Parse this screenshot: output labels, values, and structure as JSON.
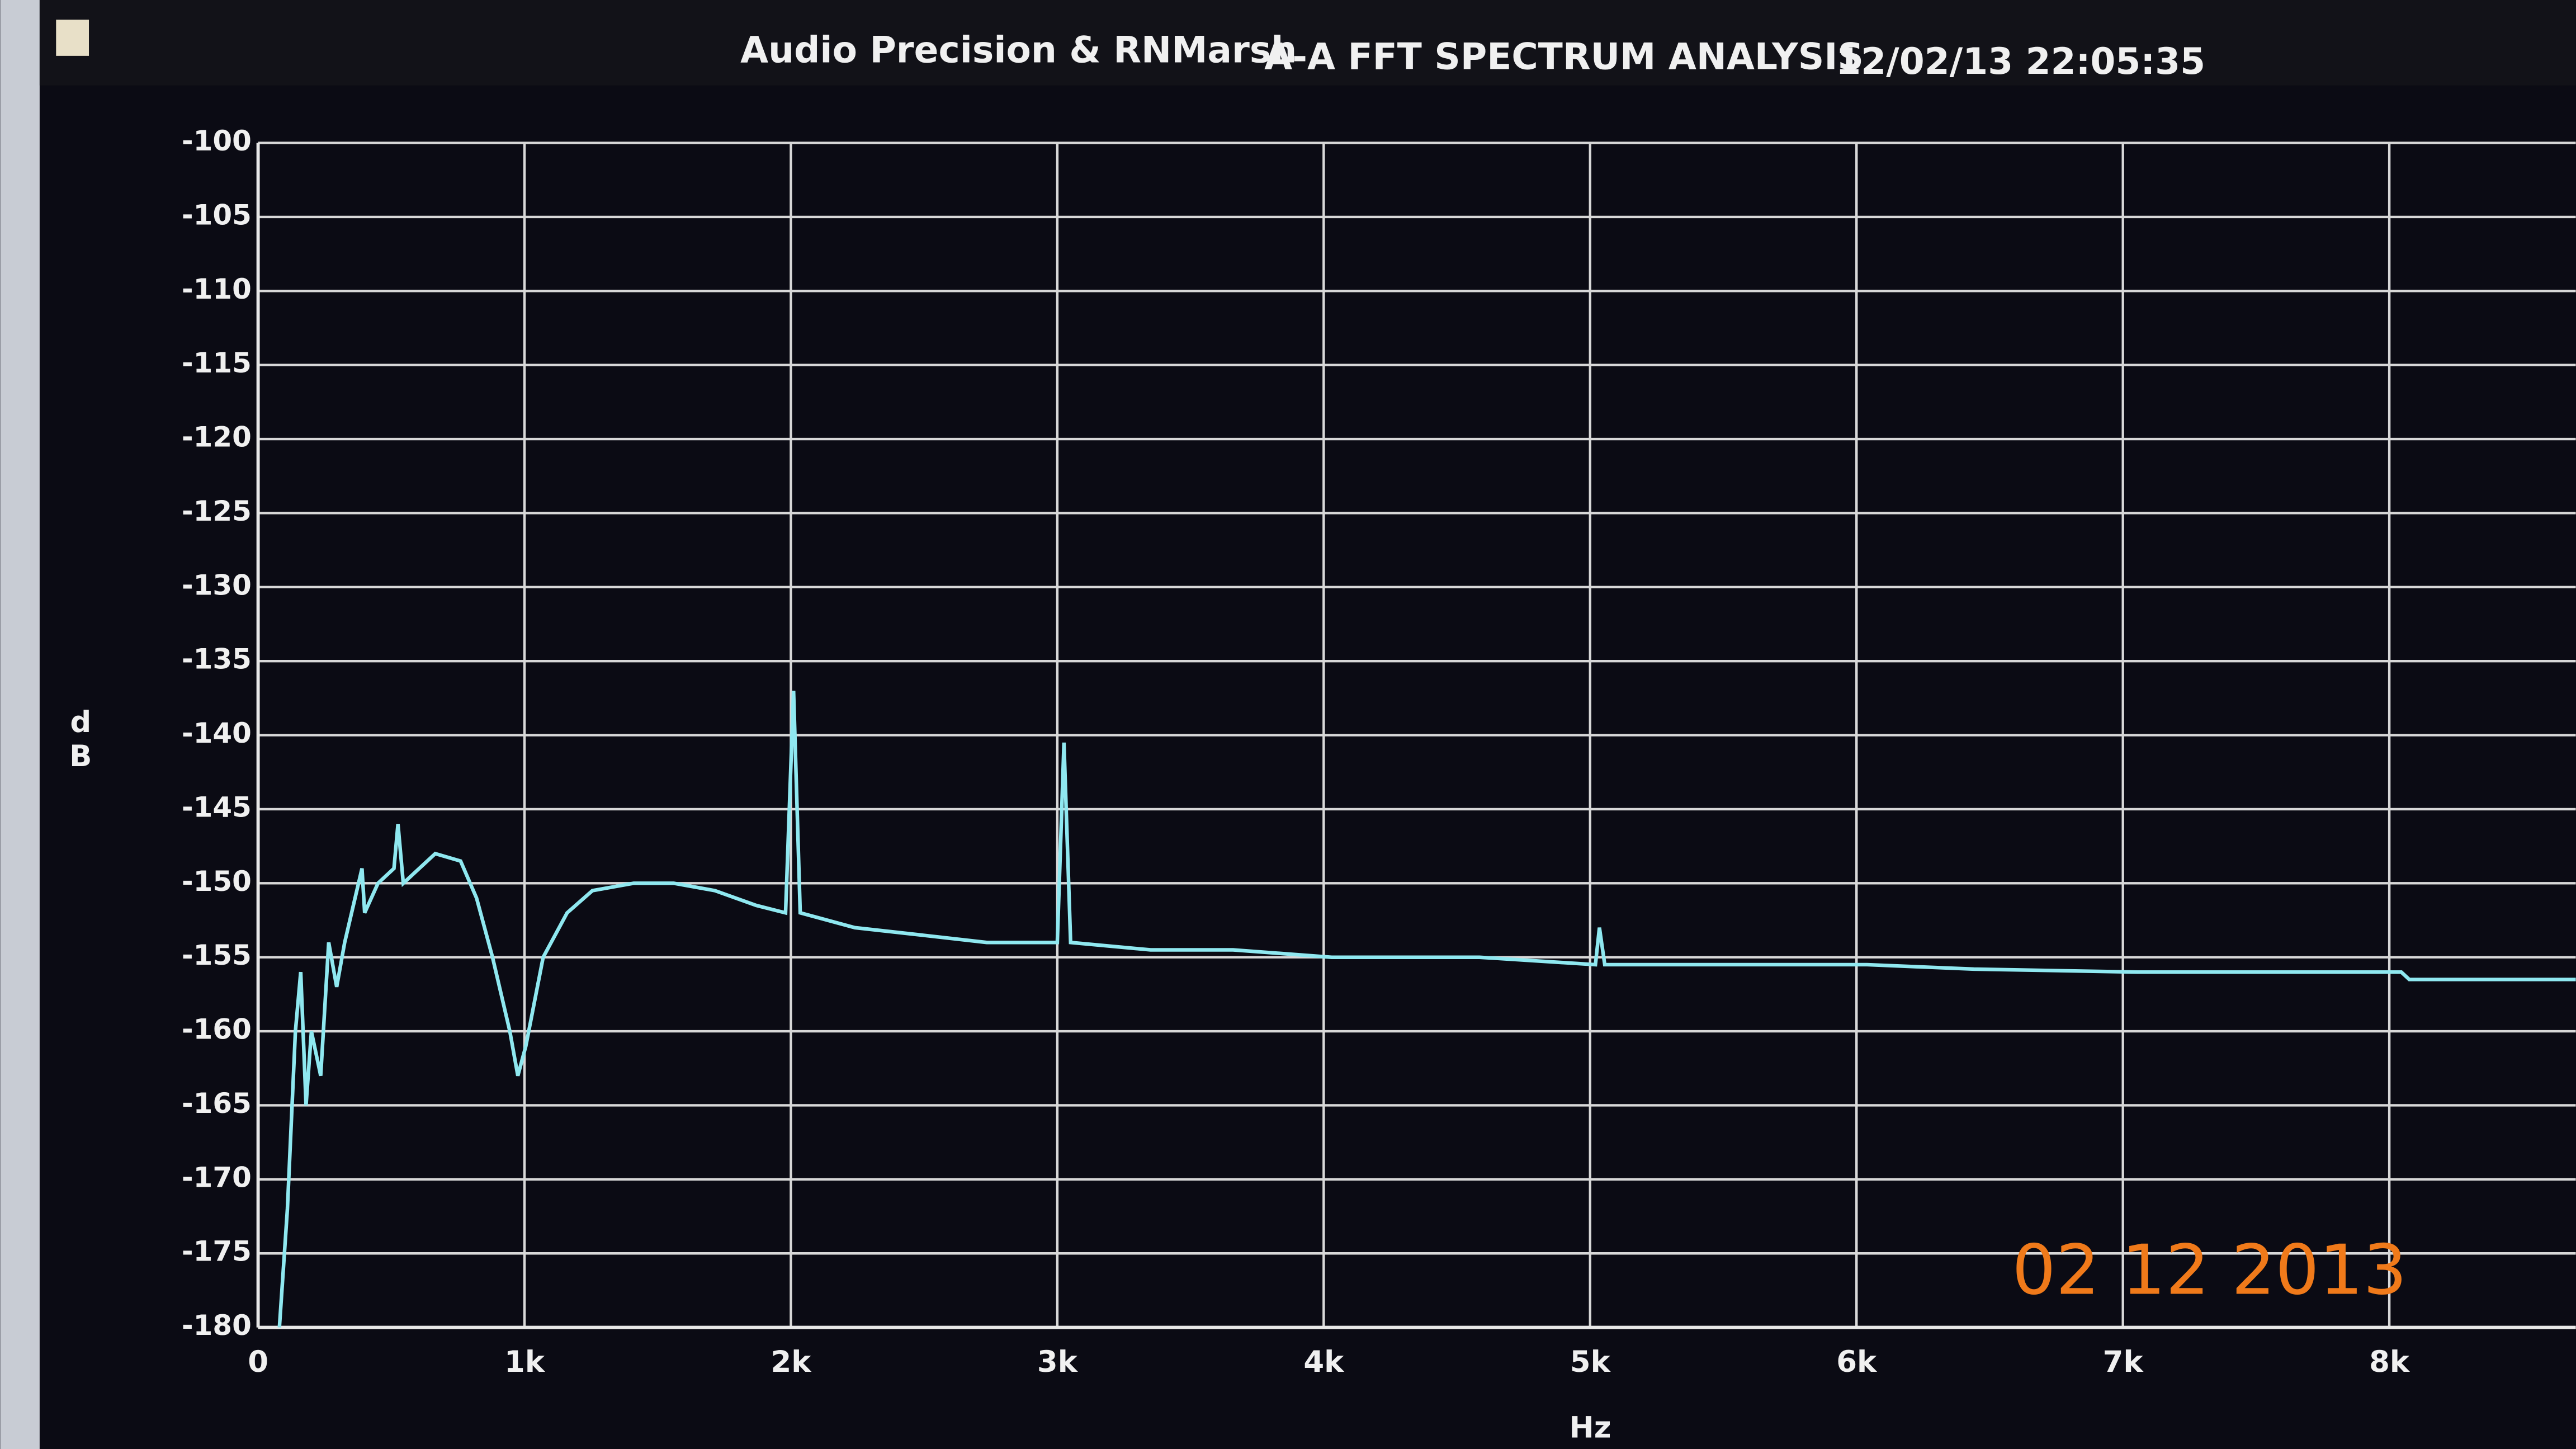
{
  "chart_data": {
    "type": "line",
    "title": "Audio Precision & RNMarsh",
    "subtitle": "A-A FFT SPECTRUM ANALYSIS",
    "timestamp": "12/02/13 22:05:35",
    "x_label": "Hz",
    "y_label": "dB",
    "annotation": "02 12 2013",
    "x": [
      80,
      110,
      140,
      160,
      180,
      200,
      235,
      265,
      295,
      325,
      390,
      400,
      450,
      510,
      525,
      545,
      605,
      665,
      760,
      820,
      880,
      945,
      975,
      1005,
      1070,
      1160,
      1255,
      1410,
      1560,
      1715,
      1870,
      1980,
      2010,
      2035,
      2240,
      2490,
      2735,
      3000,
      3025,
      3050,
      3350,
      3660,
      4030,
      4585,
      5020,
      5035,
      5055,
      5510,
      6040,
      6440,
      7055,
      7670,
      8045,
      8075,
      8700
    ],
    "series": [
      {
        "name": "A-A",
        "color": "#8fe8f0",
        "values": [
          -180,
          -172,
          -160,
          -156,
          -165,
          -160,
          -163,
          -154,
          -157,
          -154,
          -149,
          -152,
          -150,
          -149,
          -146,
          -150,
          -149,
          -148,
          -148.5,
          -151,
          -155,
          -160,
          -163,
          -161,
          -155,
          -152,
          -150.5,
          -150,
          -150,
          -150.5,
          -151.5,
          -152,
          -137,
          -152,
          -153,
          -153.5,
          -154,
          -154,
          -140.5,
          -154,
          -154.5,
          -154.5,
          -155,
          -155,
          -155.5,
          -153,
          -155.5,
          -155.5,
          -155.5,
          -155.8,
          -156,
          -156,
          -156,
          -156.5,
          -156.5
        ]
      }
    ],
    "xlim": [
      0,
      8700
    ],
    "xticks": [
      0,
      {
        "value": 1000,
        "label": "1k"
      },
      {
        "value": 2000,
        "label": "2k"
      },
      {
        "value": 3000,
        "label": "3k"
      },
      {
        "value": 4000,
        "label": "4k"
      },
      {
        "value": 5000,
        "label": "5k"
      },
      {
        "value": 6000,
        "label": "6k"
      },
      {
        "value": 7000,
        "label": "7k"
      },
      {
        "value": 8000,
        "label": "8k"
      }
    ],
    "ylim": [
      -180,
      -100
    ],
    "yticks": [
      -180,
      -175,
      -170,
      -165,
      -160,
      -155,
      -150,
      -145,
      -140,
      -135,
      -130,
      -125,
      -120,
      -115,
      -110,
      -105,
      -100
    ],
    "grid": true
  }
}
